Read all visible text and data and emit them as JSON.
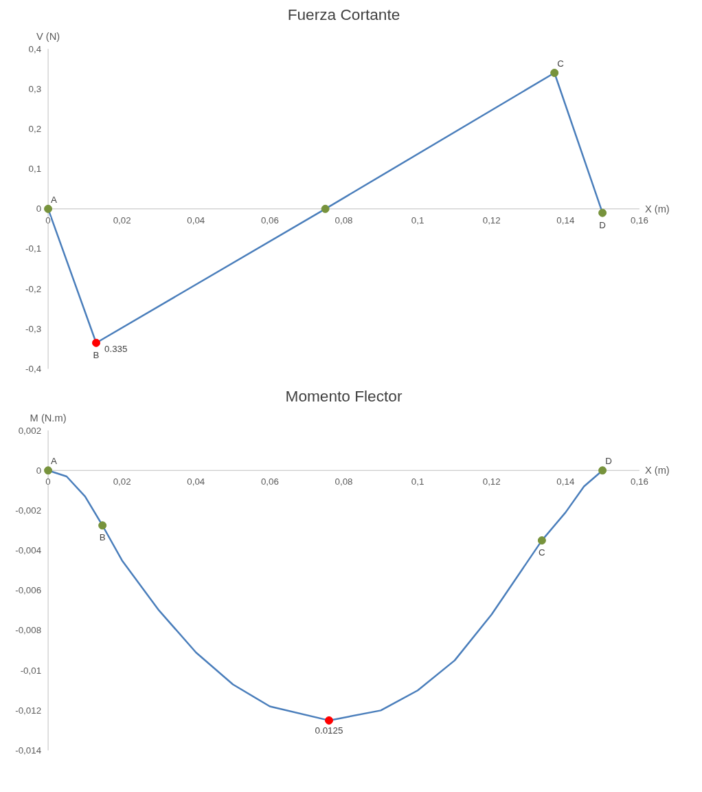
{
  "chart_data": [
    {
      "type": "line",
      "title": "Fuerza Cortante",
      "ylabel": "V (N)",
      "xlabel": "X (m)",
      "xlim": [
        0,
        0.16
      ],
      "ylim": [
        -0.4,
        0.4
      ],
      "xticks": [
        {
          "value": 0,
          "label": "0"
        },
        {
          "value": 0.02,
          "label": "0,02"
        },
        {
          "value": 0.04,
          "label": "0,04"
        },
        {
          "value": 0.06,
          "label": "0,06"
        },
        {
          "value": 0.08,
          "label": "0,08"
        },
        {
          "value": 0.1,
          "label": "0,1"
        },
        {
          "value": 0.12,
          "label": "0,12"
        },
        {
          "value": 0.14,
          "label": "0,14"
        },
        {
          "value": 0.16,
          "label": "0,16"
        }
      ],
      "yticks": [
        {
          "value": -0.4,
          "label": "-0,4"
        },
        {
          "value": -0.3,
          "label": "-0,3"
        },
        {
          "value": -0.2,
          "label": "-0,2"
        },
        {
          "value": -0.1,
          "label": "-0,1"
        },
        0,
        {
          "value": 0.1,
          "label": "0,1"
        },
        {
          "value": 0.2,
          "label": "0,2"
        },
        {
          "value": 0.3,
          "label": "0,3"
        },
        {
          "value": 0.4,
          "label": "0,4"
        }
      ],
      "series": [
        {
          "color": "#4a7ebb",
          "x": [
            0,
            0.013,
            0.075,
            0.137,
            0.15
          ],
          "values": [
            0,
            -0.335,
            0,
            0.34,
            -0.01
          ]
        },
        {
          "type": "scatter",
          "colors": [
            "#77933c",
            "#ff0000",
            "#77933c",
            "#77933c",
            "#77933c"
          ],
          "x": [
            0,
            0.013,
            0.075,
            0.137,
            0.15
          ],
          "values": [
            0,
            -0.335,
            0,
            0.34,
            -0.01
          ]
        }
      ],
      "annotations": [
        {
          "text": "A",
          "x": 0,
          "y": 0
        },
        {
          "text": "B",
          "x": 0.013,
          "y": -0.335
        },
        {
          "text": "C",
          "x": 0.137,
          "y": 0.34
        },
        {
          "text": "D",
          "x": 0.15,
          "y": -0.01
        },
        {
          "text": "0.335",
          "x": 0.013,
          "y": -0.335
        }
      ]
    },
    {
      "type": "line",
      "title": "Momento Flector",
      "ylabel": "M (N.m)",
      "xlabel": "X (m)",
      "xlim": [
        0,
        0.16
      ],
      "ylim": [
        -0.014,
        0.002
      ],
      "xticks": [
        {
          "value": 0,
          "label": "0"
        },
        {
          "value": 0.02,
          "label": "0,02"
        },
        {
          "value": 0.04,
          "label": "0,04"
        },
        {
          "value": 0.06,
          "label": "0,06"
        },
        {
          "value": 0.08,
          "label": "0,08"
        },
        {
          "value": 0.1,
          "label": "0,1"
        },
        {
          "value": 0.12,
          "label": "0,12"
        },
        {
          "value": 0.14,
          "label": "0,14"
        },
        {
          "value": 0.16,
          "label": "0,16"
        }
      ],
      "yticks": [
        {
          "value": -0.014,
          "label": "-0,014"
        },
        {
          "value": -0.012,
          "label": "-0,012"
        },
        {
          "value": -0.01,
          "label": "-0,01"
        },
        {
          "value": -0.008,
          "label": "-0,008"
        },
        {
          "value": -0.006,
          "label": "-0,006"
        },
        {
          "value": -0.004,
          "label": "-0,004"
        },
        {
          "value": -0.002,
          "label": "-0,002"
        },
        0,
        {
          "value": 0.002,
          "label": "0,002"
        }
      ],
      "series": [
        {
          "color": "#4a7ebb",
          "x": [
            0,
            0.005,
            0.01,
            0.0147,
            0.02,
            0.03,
            0.04,
            0.05,
            0.06,
            0.076,
            0.09,
            0.1,
            0.11,
            0.12,
            0.1336,
            0.14,
            0.145,
            0.15
          ],
          "values": [
            0,
            -0.0003,
            -0.0013,
            -0.00275,
            -0.0045,
            -0.007,
            -0.0091,
            -0.0107,
            -0.0118,
            -0.0125,
            -0.012,
            -0.011,
            -0.0095,
            -0.0072,
            -0.0035,
            -0.0021,
            -0.0008,
            0
          ]
        },
        {
          "type": "scatter",
          "colors": [
            "#77933c",
            "#77933c",
            "#ff0000",
            "#77933c",
            "#77933c"
          ],
          "x": [
            0,
            0.0147,
            0.076,
            0.1336,
            0.15
          ],
          "values": [
            0,
            -0.00275,
            -0.0125,
            -0.0035,
            0
          ]
        }
      ],
      "annotations": [
        {
          "text": "A",
          "x": 0,
          "y": 0
        },
        {
          "text": "B",
          "x": 0.0147,
          "y": -0.00275
        },
        {
          "text": "C",
          "x": 0.1336,
          "y": -0.0035
        },
        {
          "text": "D",
          "x": 0.15,
          "y": 0
        },
        {
          "text": "0.0125",
          "x": 0.076,
          "y": -0.0125
        }
      ]
    }
  ]
}
